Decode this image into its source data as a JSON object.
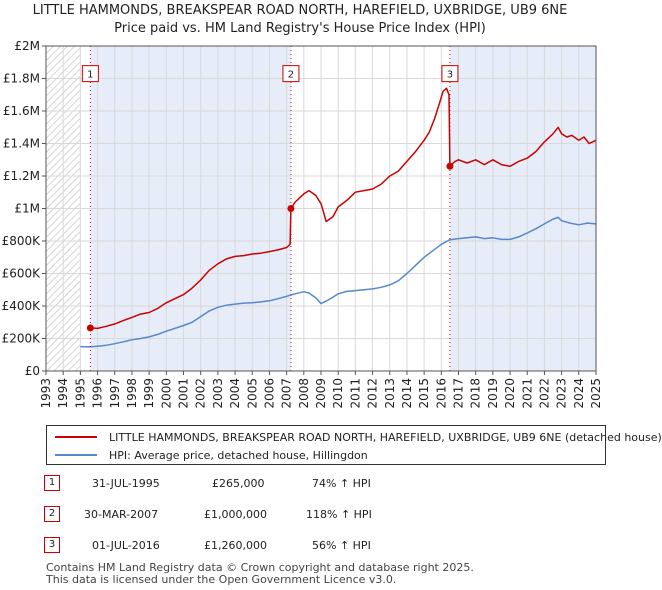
{
  "header": {
    "title_line1": "LITTLE HAMMONDS, BREAKSPEAR ROAD NORTH, HAREFIELD, UXBRIDGE, UB9 6NE",
    "title_line2": "Price paid vs. HM Land Registry's House Price Index (HPI)"
  },
  "chart_data": {
    "type": "line",
    "title": "LITTLE HAMMONDS, BREAKSPEAR ROAD NORTH, HAREFIELD, UXBRIDGE, UB9 6NE",
    "subtitle": "Price paid vs. HM Land Registry's House Price Index (HPI)",
    "xlim": [
      1993,
      2025
    ],
    "ylim": [
      0,
      2000000
    ],
    "y_ticks": [
      0,
      200000,
      400000,
      600000,
      800000,
      1000000,
      1200000,
      1400000,
      1600000,
      1800000,
      2000000
    ],
    "y_tick_labels": [
      "£0",
      "£200K",
      "£400K",
      "£600K",
      "£800K",
      "£1M",
      "£1.2M",
      "£1.4M",
      "£1.6M",
      "£1.8M",
      "£2M"
    ],
    "x_ticks": [
      1993,
      1994,
      1995,
      1996,
      1997,
      1998,
      1999,
      2000,
      2001,
      2002,
      2003,
      2004,
      2005,
      2006,
      2007,
      2008,
      2009,
      2010,
      2011,
      2012,
      2013,
      2014,
      2015,
      2016,
      2017,
      2018,
      2019,
      2020,
      2021,
      2022,
      2023,
      2024,
      2025
    ],
    "x_tick_labels": [
      "1993",
      "1994",
      "1995",
      "1996",
      "1997",
      "1998",
      "1999",
      "2000",
      "2001",
      "2002",
      "2003",
      "2004",
      "2005",
      "2006",
      "2007",
      "2008",
      "2009",
      "2010",
      "2011",
      "2012",
      "2013",
      "2014",
      "2015",
      "2016",
      "2017",
      "2018",
      "2019",
      "2020",
      "2021",
      "2022",
      "2023",
      "2024",
      "2025"
    ],
    "hatch_regions": [
      [
        1993,
        1995.0
      ],
      [
        2025.0,
        2025.5
      ]
    ],
    "shade_regions": [
      [
        1995.58,
        2007.25
      ],
      [
        2016.5,
        2025.0
      ]
    ],
    "series": [
      {
        "name": "LITTLE HAMMONDS, BREAKSPEAR ROAD NORTH, HAREFIELD, UXBRIDGE, UB9 6NE (detached house)",
        "color": "#cc0000",
        "x": [
          1995.58,
          1996.0,
          1996.5,
          1997.0,
          1997.5,
          1998.0,
          1998.5,
          1999.0,
          1999.5,
          2000.0,
          2000.5,
          2001.0,
          2001.5,
          2002.0,
          2002.5,
          2003.0,
          2003.5,
          2004.0,
          2004.5,
          2005.0,
          2005.5,
          2006.0,
          2006.5,
          2007.0,
          2007.2,
          2007.25,
          2007.5,
          2008.0,
          2008.3,
          2008.7,
          2009.0,
          2009.3,
          2009.7,
          2010.0,
          2010.5,
          2011.0,
          2011.5,
          2012.0,
          2012.5,
          2013.0,
          2013.5,
          2014.0,
          2014.5,
          2015.0,
          2015.3,
          2015.6,
          2015.9,
          2016.1,
          2016.3,
          2016.45,
          2016.5,
          2016.6,
          2016.8,
          2017.0,
          2017.5,
          2018.0,
          2018.5,
          2019.0,
          2019.5,
          2020.0,
          2020.5,
          2021.0,
          2021.5,
          2022.0,
          2022.5,
          2022.8,
          2023.0,
          2023.3,
          2023.6,
          2024.0,
          2024.3,
          2024.6,
          2025.0
        ],
        "y": [
          265000,
          262000,
          275000,
          290000,
          310000,
          330000,
          350000,
          360000,
          385000,
          420000,
          445000,
          470000,
          510000,
          560000,
          620000,
          660000,
          690000,
          705000,
          710000,
          720000,
          725000,
          735000,
          745000,
          760000,
          780000,
          1000000,
          1040000,
          1090000,
          1110000,
          1080000,
          1030000,
          920000,
          950000,
          1010000,
          1050000,
          1100000,
          1110000,
          1120000,
          1150000,
          1200000,
          1230000,
          1290000,
          1350000,
          1420000,
          1470000,
          1550000,
          1650000,
          1720000,
          1740000,
          1700000,
          1260000,
          1270000,
          1290000,
          1300000,
          1280000,
          1300000,
          1270000,
          1300000,
          1270000,
          1260000,
          1290000,
          1310000,
          1350000,
          1410000,
          1460000,
          1500000,
          1460000,
          1440000,
          1450000,
          1420000,
          1440000,
          1400000,
          1420000
        ]
      },
      {
        "name": "HPI: Average price, detached house, Hillingdon",
        "color": "#5588cc",
        "x": [
          1995.0,
          1995.5,
          1996.0,
          1996.5,
          1997.0,
          1997.5,
          1998.0,
          1998.5,
          1999.0,
          1999.5,
          2000.0,
          2000.5,
          2001.0,
          2001.5,
          2002.0,
          2002.5,
          2003.0,
          2003.5,
          2004.0,
          2004.5,
          2005.0,
          2005.5,
          2006.0,
          2006.5,
          2007.0,
          2007.5,
          2008.0,
          2008.3,
          2008.7,
          2009.0,
          2009.3,
          2009.7,
          2010.0,
          2010.5,
          2011.0,
          2011.5,
          2012.0,
          2012.5,
          2013.0,
          2013.5,
          2014.0,
          2014.5,
          2015.0,
          2015.5,
          2016.0,
          2016.5,
          2017.0,
          2017.5,
          2018.0,
          2018.5,
          2019.0,
          2019.5,
          2020.0,
          2020.5,
          2021.0,
          2021.5,
          2022.0,
          2022.5,
          2022.8,
          2023.0,
          2023.5,
          2024.0,
          2024.5,
          2025.0
        ],
        "y": [
          150000,
          148000,
          152000,
          158000,
          168000,
          180000,
          192000,
          200000,
          210000,
          225000,
          245000,
          262000,
          280000,
          300000,
          335000,
          370000,
          392000,
          405000,
          412000,
          418000,
          420000,
          425000,
          432000,
          445000,
          460000,
          475000,
          488000,
          480000,
          450000,
          415000,
          430000,
          455000,
          475000,
          490000,
          495000,
          500000,
          505000,
          515000,
          530000,
          555000,
          600000,
          650000,
          700000,
          740000,
          780000,
          808000,
          815000,
          820000,
          825000,
          815000,
          820000,
          810000,
          810000,
          825000,
          850000,
          875000,
          905000,
          935000,
          945000,
          925000,
          910000,
          900000,
          910000,
          905000
        ]
      }
    ],
    "sale_markers": [
      {
        "label": "1",
        "x": 1995.58,
        "y": 265000
      },
      {
        "label": "2",
        "x": 2007.25,
        "y": 1000000
      },
      {
        "label": "3",
        "x": 2016.5,
        "y": 1260000
      }
    ],
    "marker_label_y": 1830000
  },
  "legend": {
    "property_label": "LITTLE HAMMONDS, BREAKSPEAR ROAD NORTH, HAREFIELD, UXBRIDGE, UB9 6NE (detached house)",
    "hpi_label": "HPI: Average price, detached house, Hillingdon",
    "property_color": "#cc0000",
    "hpi_color": "#5588cc"
  },
  "sales": [
    {
      "num": "1",
      "date": "31-JUL-1995",
      "price": "£265,000",
      "pct": "74% ↑ HPI"
    },
    {
      "num": "2",
      "date": "30-MAR-2007",
      "price": "£1,000,000",
      "pct": "118% ↑ HPI"
    },
    {
      "num": "3",
      "date": "01-JUL-2016",
      "price": "£1,260,000",
      "pct": "56% ↑ HPI"
    }
  ],
  "footer": {
    "line1": "Contains HM Land Registry data © Crown copyright and database right 2025.",
    "line2": "This data is licensed under the Open Government Licence v3.0."
  }
}
